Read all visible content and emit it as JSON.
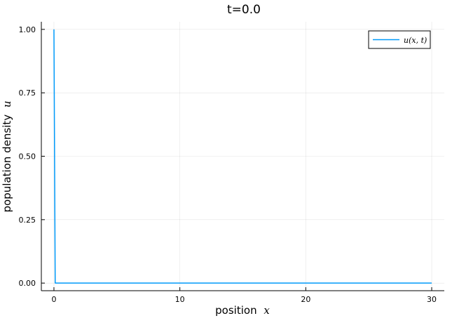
{
  "chart_data": {
    "type": "line",
    "title": "t=0.0",
    "xlabel": "position",
    "xlabel_math": "x",
    "ylabel": "population density",
    "ylabel_math": "u",
    "xlim": [
      -1.0,
      31.0
    ],
    "ylim": [
      -0.03,
      1.03
    ],
    "x_ticks": [
      0,
      10,
      20,
      30
    ],
    "x_tick_labels": [
      "0",
      "10",
      "20",
      "30"
    ],
    "y_ticks": [
      0,
      0.25,
      0.5,
      0.75,
      1.0
    ],
    "y_tick_labels": [
      "0.00",
      "0.25",
      "0.50",
      "0.75",
      "1.00"
    ],
    "grid": true,
    "legend_position": "top-right",
    "series": [
      {
        "name": "u(x, t)",
        "color": "#009AFA",
        "x": [
          0,
          0.1,
          0.2,
          30
        ],
        "values": [
          1.0,
          0.0,
          0.0,
          0.0
        ]
      }
    ]
  }
}
